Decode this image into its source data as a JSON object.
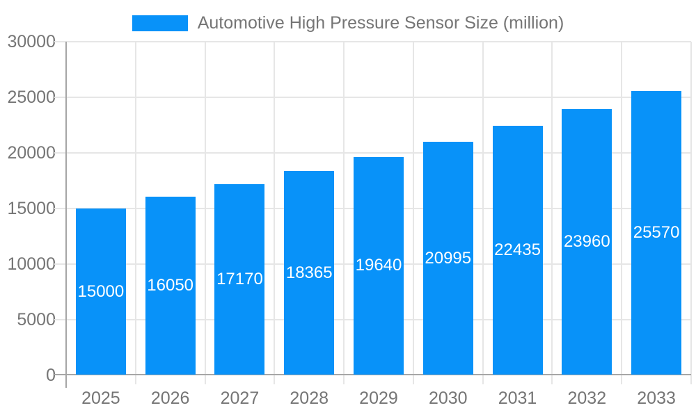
{
  "chart_data": {
    "type": "bar",
    "title": "Automotive High Pressure Sensor Size (million)",
    "legend_position": "top",
    "grid": true,
    "categories": [
      "2025",
      "2026",
      "2027",
      "2028",
      "2029",
      "2030",
      "2031",
      "2032",
      "2033"
    ],
    "series": [
      {
        "name": "Automotive High Pressure Sensor Size (million)",
        "values": [
          15000,
          16050,
          17170,
          18365,
          19640,
          20995,
          22435,
          23960,
          25570
        ]
      }
    ],
    "value_labels": [
      "15000",
      "16050",
      "17170",
      "18365",
      "19640",
      "20995",
      "22435",
      "23960",
      "25570"
    ],
    "xlabel": "",
    "ylabel": "",
    "ylim": [
      0,
      30000
    ],
    "yticks": [
      0,
      5000,
      10000,
      15000,
      20000,
      25000,
      30000
    ],
    "ytick_labels": [
      "0",
      "5000",
      "10000",
      "15000",
      "20000",
      "25000",
      "30000"
    ],
    "colors": {
      "bar": "#0892f9",
      "axis_text": "#757575",
      "legend_text": "#757575",
      "grid_line": "#e6e6e6",
      "axis_line": "#a6a6a6",
      "value_label": "#ffffff",
      "background": "#ffffff"
    }
  }
}
